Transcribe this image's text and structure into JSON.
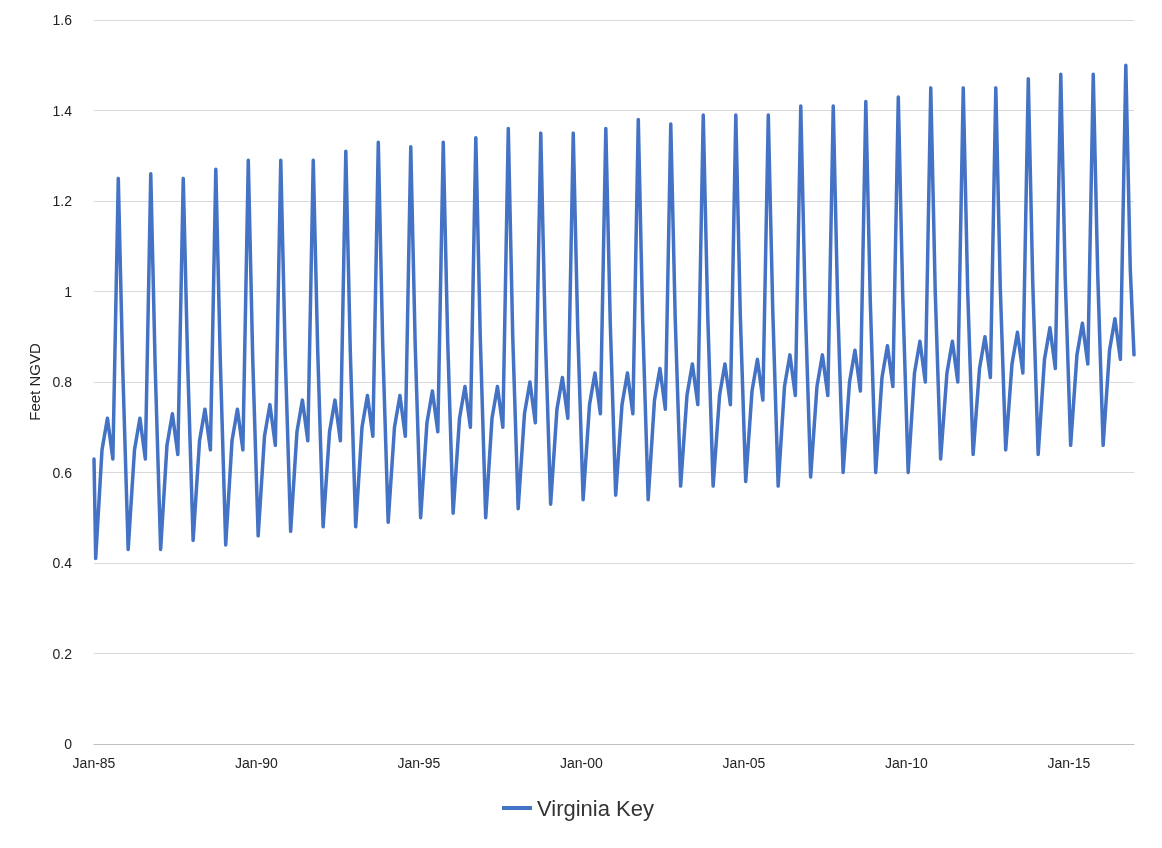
{
  "chart_data": {
    "type": "line",
    "ylabel": "Feet NGVD",
    "x": [
      "1985-01-01",
      "1985-01-20",
      "1985-04",
      "1985-06",
      "1985-08",
      "1985-10",
      "1985-11-20",
      "1986-01-20",
      "1986-04",
      "1986-06",
      "1986-08",
      "1986-10",
      "1986-11-20",
      "1987-01-20",
      "1987-04",
      "1987-06",
      "1987-08",
      "1987-10",
      "1987-11-20",
      "1988-01-20",
      "1988-04",
      "1988-06",
      "1988-08",
      "1988-10",
      "1988-11-20",
      "1989-01-20",
      "1989-04",
      "1989-06",
      "1989-08",
      "1989-10",
      "1989-11-20",
      "1990-01-20",
      "1990-04",
      "1990-06",
      "1990-08",
      "1990-10",
      "1990-11-20",
      "1991-01-20",
      "1991-04",
      "1991-06",
      "1991-08",
      "1991-10",
      "1991-11-20",
      "1992-01-20",
      "1992-04",
      "1992-06",
      "1992-08",
      "1992-10",
      "1992-11-20",
      "1993-01-20",
      "1993-04",
      "1993-06",
      "1993-08",
      "1993-10",
      "1993-11-20",
      "1994-01-20",
      "1994-04",
      "1994-06",
      "1994-08",
      "1994-10",
      "1994-11-20",
      "1995-01-20",
      "1995-04",
      "1995-06",
      "1995-08",
      "1995-10",
      "1995-11-20",
      "1996-01-20",
      "1996-04",
      "1996-06",
      "1996-08",
      "1996-10",
      "1996-11-20",
      "1997-01-20",
      "1997-04",
      "1997-06",
      "1997-08",
      "1997-10",
      "1997-11-20",
      "1998-01-20",
      "1998-04",
      "1998-06",
      "1998-08",
      "1998-10",
      "1998-11-20",
      "1999-01-20",
      "1999-04",
      "1999-06",
      "1999-08",
      "1999-10",
      "1999-11-20",
      "2000-01-20",
      "2000-04",
      "2000-06",
      "2000-08",
      "2000-10",
      "2000-11-20",
      "2001-01-20",
      "2001-04",
      "2001-06",
      "2001-08",
      "2001-10",
      "2001-11-20",
      "2002-01-20",
      "2002-04",
      "2002-06",
      "2002-08",
      "2002-10",
      "2002-11-20",
      "2003-01-20",
      "2003-04",
      "2003-06",
      "2003-08",
      "2003-10",
      "2003-11-20",
      "2004-01-20",
      "2004-04",
      "2004-06",
      "2004-08",
      "2004-10",
      "2004-11-20",
      "2005-01-20",
      "2005-04",
      "2005-06",
      "2005-08",
      "2005-10",
      "2005-11-20",
      "2006-01-20",
      "2006-04",
      "2006-06",
      "2006-08",
      "2006-10",
      "2006-11-20",
      "2007-01-20",
      "2007-04",
      "2007-06",
      "2007-08",
      "2007-10",
      "2007-11-20",
      "2008-01-20",
      "2008-04",
      "2008-06",
      "2008-08",
      "2008-10",
      "2008-11-20",
      "2009-01-20",
      "2009-04",
      "2009-06",
      "2009-08",
      "2009-10",
      "2009-11-20",
      "2010-01-20",
      "2010-04",
      "2010-06",
      "2010-08",
      "2010-10",
      "2010-11-20",
      "2011-01-20",
      "2011-04",
      "2011-06",
      "2011-08",
      "2011-10",
      "2011-11-20",
      "2012-01-20",
      "2012-04",
      "2012-06",
      "2012-08",
      "2012-10",
      "2012-11-20",
      "2013-01-20",
      "2013-04",
      "2013-06",
      "2013-08",
      "2013-10",
      "2013-11-20",
      "2014-01-20",
      "2014-04",
      "2014-06",
      "2014-08",
      "2014-10",
      "2014-11-20",
      "2015-01-20",
      "2015-04",
      "2015-06",
      "2015-08",
      "2015-10",
      "2015-11-20",
      "2016-01-20",
      "2016-04",
      "2016-06",
      "2016-08",
      "2016-10",
      "2016-11-20",
      "2017-01"
    ],
    "series": [
      {
        "name": "Virginia Key",
        "color": "#4472c4",
        "values": [
          0.63,
          0.41,
          0.65,
          0.72,
          0.63,
          1.25,
          0.83,
          0.43,
          0.65,
          0.72,
          0.63,
          1.26,
          0.83,
          0.43,
          0.66,
          0.73,
          0.64,
          1.25,
          0.84,
          0.45,
          0.67,
          0.74,
          0.65,
          1.27,
          0.85,
          0.44,
          0.67,
          0.74,
          0.65,
          1.29,
          0.85,
          0.46,
          0.68,
          0.75,
          0.66,
          1.29,
          0.86,
          0.47,
          0.69,
          0.76,
          0.67,
          1.29,
          0.87,
          0.48,
          0.69,
          0.76,
          0.67,
          1.31,
          0.87,
          0.48,
          0.7,
          0.77,
          0.68,
          1.33,
          0.88,
          0.49,
          0.7,
          0.77,
          0.68,
          1.32,
          0.88,
          0.5,
          0.71,
          0.78,
          0.69,
          1.33,
          0.89,
          0.51,
          0.72,
          0.79,
          0.7,
          1.34,
          0.9,
          0.5,
          0.72,
          0.79,
          0.7,
          1.36,
          0.9,
          0.52,
          0.73,
          0.8,
          0.71,
          1.35,
          0.91,
          0.53,
          0.74,
          0.81,
          0.72,
          1.35,
          0.92,
          0.54,
          0.75,
          0.82,
          0.73,
          1.36,
          0.93,
          0.55,
          0.75,
          0.82,
          0.73,
          1.38,
          0.93,
          0.54,
          0.76,
          0.83,
          0.74,
          1.37,
          0.94,
          0.57,
          0.77,
          0.84,
          0.75,
          1.39,
          0.95,
          0.57,
          0.77,
          0.84,
          0.75,
          1.39,
          0.95,
          0.58,
          0.78,
          0.85,
          0.76,
          1.39,
          0.96,
          0.57,
          0.79,
          0.86,
          0.77,
          1.41,
          0.97,
          0.59,
          0.79,
          0.86,
          0.77,
          1.41,
          0.97,
          0.6,
          0.8,
          0.87,
          0.78,
          1.42,
          0.98,
          0.6,
          0.81,
          0.88,
          0.79,
          1.43,
          0.99,
          0.6,
          0.82,
          0.89,
          0.8,
          1.45,
          1.0,
          0.63,
          0.82,
          0.89,
          0.8,
          1.45,
          1.0,
          0.64,
          0.83,
          0.9,
          0.81,
          1.45,
          1.01,
          0.65,
          0.84,
          0.91,
          0.82,
          1.47,
          1.02,
          0.64,
          0.85,
          0.92,
          0.83,
          1.48,
          1.03,
          0.66,
          0.86,
          0.93,
          0.84,
          1.48,
          1.04,
          0.66,
          0.87,
          0.94,
          0.85,
          1.5,
          1.05,
          0.86
        ]
      }
    ],
    "xlim": [
      "1985-01",
      "2017-01"
    ],
    "xticks": [
      {
        "value": "1985-01",
        "label": "Jan-85"
      },
      {
        "value": "1990-01",
        "label": "Jan-90"
      },
      {
        "value": "1995-01",
        "label": "Jan-95"
      },
      {
        "value": "2000-01",
        "label": "Jan-00"
      },
      {
        "value": "2005-01",
        "label": "Jan-05"
      },
      {
        "value": "2010-01",
        "label": "Jan-10"
      },
      {
        "value": "2015-01",
        "label": "Jan-15"
      }
    ],
    "ylim": [
      0,
      1.6
    ],
    "yticks": [
      0,
      0.2,
      0.4,
      0.6,
      0.8,
      1,
      1.2,
      1.4,
      1.6
    ],
    "grid": "y",
    "legend": "bottom",
    "marker": "none",
    "line_style": "solid"
  }
}
